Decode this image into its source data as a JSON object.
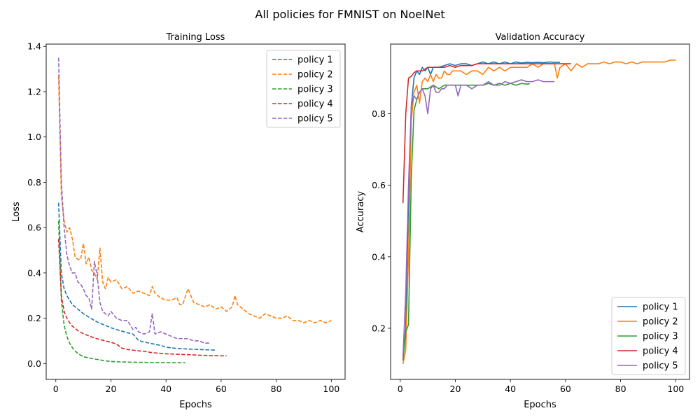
{
  "figure": {
    "title": "All policies for FMNIST on NoelNet"
  },
  "chart_data": [
    {
      "type": "line",
      "line_style": "dashed",
      "title": "Training Loss",
      "xlabel": "Epochs",
      "ylabel": "Loss",
      "xlim": [
        -3.5,
        105
      ],
      "ylim": [
        -0.07,
        1.41
      ],
      "xticks": [
        0,
        20,
        40,
        60,
        80,
        100
      ],
      "yticks": [
        0.0,
        0.2,
        0.4,
        0.6,
        0.8,
        1.0,
        1.2,
        1.4
      ],
      "ytick_labels": [
        "0.0",
        "0.2",
        "0.4",
        "0.6",
        "0.8",
        "1.0",
        "1.2",
        "1.4"
      ],
      "legend_position": "top-right",
      "series": [
        {
          "name": "policy 1",
          "color": "#1f77b4",
          "x": [
            1,
            2,
            3,
            4,
            5,
            6,
            7,
            8,
            9,
            10,
            12,
            14,
            16,
            18,
            20,
            22,
            24,
            26,
            28,
            30,
            32,
            34,
            36,
            38,
            40,
            42,
            44,
            46,
            48,
            50,
            52,
            54,
            56,
            58
          ],
          "y": [
            0.71,
            0.4,
            0.33,
            0.3,
            0.28,
            0.26,
            0.25,
            0.24,
            0.23,
            0.22,
            0.205,
            0.19,
            0.178,
            0.168,
            0.158,
            0.15,
            0.143,
            0.136,
            0.13,
            0.102,
            0.095,
            0.09,
            0.085,
            0.08,
            0.072,
            0.069,
            0.067,
            0.066,
            0.064,
            0.063,
            0.062,
            0.061,
            0.06,
            0.059
          ]
        },
        {
          "name": "policy 2",
          "color": "#ff7f0e",
          "x": [
            1,
            2,
            3,
            4,
            5,
            6,
            7,
            8,
            9,
            10,
            11,
            12,
            13,
            14,
            15,
            16,
            17,
            18,
            19,
            20,
            22,
            24,
            26,
            28,
            30,
            32,
            34,
            35,
            36,
            38,
            40,
            42,
            44,
            45,
            46,
            48,
            50,
            52,
            54,
            56,
            58,
            60,
            62,
            64,
            65,
            66,
            68,
            70,
            72,
            74,
            76,
            78,
            80,
            82,
            84,
            86,
            88,
            90,
            92,
            94,
            96,
            98,
            100
          ],
          "y": [
            1.27,
            0.74,
            0.63,
            0.58,
            0.6,
            0.55,
            0.47,
            0.46,
            0.46,
            0.53,
            0.44,
            0.47,
            0.41,
            0.4,
            0.37,
            0.51,
            0.36,
            0.33,
            0.38,
            0.36,
            0.37,
            0.33,
            0.34,
            0.31,
            0.32,
            0.31,
            0.3,
            0.34,
            0.31,
            0.29,
            0.28,
            0.28,
            0.29,
            0.26,
            0.26,
            0.33,
            0.27,
            0.26,
            0.25,
            0.26,
            0.24,
            0.25,
            0.23,
            0.25,
            0.3,
            0.26,
            0.24,
            0.22,
            0.21,
            0.2,
            0.22,
            0.21,
            0.2,
            0.2,
            0.21,
            0.19,
            0.19,
            0.18,
            0.19,
            0.18,
            0.19,
            0.18,
            0.19
          ]
        },
        {
          "name": "policy 3",
          "color": "#2ca02c",
          "x": [
            1,
            2,
            3,
            4,
            5,
            6,
            7,
            8,
            9,
            10,
            12,
            14,
            16,
            18,
            20,
            22,
            24,
            26,
            28,
            30,
            32,
            34,
            36,
            38,
            40,
            42,
            44,
            46,
            47
          ],
          "y": [
            0.63,
            0.28,
            0.17,
            0.12,
            0.09,
            0.07,
            0.055,
            0.045,
            0.037,
            0.03,
            0.025,
            0.02,
            0.016,
            0.012,
            0.009,
            0.008,
            0.007,
            0.0065,
            0.006,
            0.0055,
            0.005,
            0.0048,
            0.0045,
            0.0043,
            0.004,
            0.0038,
            0.0036,
            0.0035,
            0.0034
          ]
        },
        {
          "name": "policy 4",
          "color": "#d62728",
          "x": [
            1,
            2,
            3,
            4,
            5,
            6,
            7,
            8,
            9,
            10,
            12,
            14,
            16,
            18,
            20,
            22,
            24,
            26,
            28,
            30,
            32,
            34,
            36,
            38,
            40,
            42,
            44,
            46,
            48,
            50,
            52,
            54,
            56,
            58,
            60,
            62
          ],
          "y": [
            0.55,
            0.3,
            0.23,
            0.2,
            0.18,
            0.165,
            0.155,
            0.145,
            0.138,
            0.132,
            0.122,
            0.113,
            0.106,
            0.1,
            0.094,
            0.086,
            0.068,
            0.062,
            0.059,
            0.056,
            0.054,
            0.05,
            0.047,
            0.045,
            0.043,
            0.042,
            0.041,
            0.04,
            0.039,
            0.038,
            0.037,
            0.036,
            0.035,
            0.035,
            0.034,
            0.034
          ]
        },
        {
          "name": "policy 5",
          "color": "#9467bd",
          "x": [
            1,
            2,
            3,
            4,
            5,
            6,
            7,
            8,
            9,
            10,
            11,
            12,
            13,
            14,
            15,
            16,
            17,
            18,
            19,
            20,
            22,
            24,
            26,
            28,
            29,
            30,
            32,
            34,
            35,
            36,
            38,
            40,
            42,
            44,
            46,
            48,
            50,
            52,
            54,
            56
          ],
          "y": [
            1.35,
            0.8,
            0.6,
            0.48,
            0.43,
            0.4,
            0.4,
            0.36,
            0.35,
            0.33,
            0.3,
            0.29,
            0.24,
            0.45,
            0.39,
            0.27,
            0.23,
            0.22,
            0.21,
            0.23,
            0.2,
            0.19,
            0.19,
            0.15,
            0.16,
            0.14,
            0.13,
            0.14,
            0.22,
            0.13,
            0.14,
            0.13,
            0.12,
            0.11,
            0.11,
            0.11,
            0.1,
            0.1,
            0.09,
            0.09
          ]
        }
      ]
    },
    {
      "type": "line",
      "line_style": "solid",
      "title": "Validation Accuracy",
      "xlabel": "Epochs",
      "ylabel": "Accuracy",
      "xlim": [
        -3.5,
        105
      ],
      "ylim": [
        0.057,
        0.995
      ],
      "xticks": [
        0,
        20,
        40,
        60,
        80,
        100
      ],
      "yticks": [
        0.2,
        0.4,
        0.6,
        0.8
      ],
      "ytick_labels": [
        "0.2",
        "0.4",
        "0.6",
        "0.8"
      ],
      "legend_position": "bottom-right",
      "series": [
        {
          "name": "policy 1",
          "color": "#1f77b4",
          "x": [
            1,
            2,
            3,
            4,
            5,
            6,
            7,
            8,
            9,
            10,
            11,
            12,
            14,
            16,
            18,
            20,
            22,
            24,
            26,
            28,
            30,
            32,
            34,
            36,
            38,
            40,
            42,
            44,
            46,
            48,
            50,
            52,
            54,
            56,
            58
          ],
          "y": [
            0.11,
            0.2,
            0.55,
            0.82,
            0.9,
            0.92,
            0.91,
            0.93,
            0.92,
            0.93,
            0.91,
            0.93,
            0.93,
            0.935,
            0.94,
            0.935,
            0.94,
            0.94,
            0.935,
            0.94,
            0.945,
            0.94,
            0.945,
            0.94,
            0.945,
            0.94,
            0.945,
            0.942,
            0.944,
            0.943,
            0.944,
            0.943,
            0.945,
            0.944,
            0.944
          ]
        },
        {
          "name": "policy 2",
          "color": "#ff7f0e",
          "x": [
            1,
            2,
            3,
            4,
            5,
            6,
            7,
            8,
            9,
            10,
            11,
            12,
            13,
            14,
            15,
            16,
            17,
            18,
            19,
            20,
            22,
            24,
            26,
            28,
            30,
            32,
            34,
            36,
            38,
            40,
            42,
            44,
            46,
            48,
            50,
            52,
            54,
            56,
            57,
            58,
            60,
            62,
            64,
            66,
            68,
            70,
            72,
            74,
            76,
            78,
            80,
            82,
            84,
            86,
            88,
            90,
            92,
            94,
            96,
            98,
            100
          ],
          "y": [
            0.1,
            0.14,
            0.4,
            0.78,
            0.86,
            0.88,
            0.83,
            0.89,
            0.9,
            0.89,
            0.91,
            0.89,
            0.91,
            0.9,
            0.9,
            0.92,
            0.91,
            0.91,
            0.92,
            0.92,
            0.92,
            0.91,
            0.92,
            0.92,
            0.91,
            0.93,
            0.92,
            0.93,
            0.92,
            0.93,
            0.93,
            0.93,
            0.93,
            0.94,
            0.93,
            0.94,
            0.94,
            0.94,
            0.9,
            0.93,
            0.94,
            0.92,
            0.94,
            0.93,
            0.94,
            0.94,
            0.94,
            0.945,
            0.94,
            0.945,
            0.945,
            0.94,
            0.945,
            0.94,
            0.945,
            0.945,
            0.945,
            0.945,
            0.945,
            0.95,
            0.95
          ]
        },
        {
          "name": "policy 3",
          "color": "#2ca02c",
          "x": [
            1,
            2,
            3,
            4,
            5,
            6,
            7,
            8,
            9,
            10,
            12,
            14,
            16,
            18,
            20,
            22,
            24,
            26,
            28,
            30,
            32,
            34,
            36,
            38,
            40,
            42,
            44,
            46,
            47
          ],
          "y": [
            0.11,
            0.19,
            0.21,
            0.62,
            0.81,
            0.84,
            0.86,
            0.87,
            0.87,
            0.87,
            0.88,
            0.87,
            0.88,
            0.88,
            0.88,
            0.88,
            0.88,
            0.88,
            0.88,
            0.88,
            0.885,
            0.88,
            0.885,
            0.88,
            0.885,
            0.88,
            0.885,
            0.883,
            0.884
          ]
        },
        {
          "name": "policy 4",
          "color": "#d62728",
          "x": [
            1,
            2,
            3,
            4,
            5,
            6,
            7,
            8,
            9,
            10,
            12,
            14,
            16,
            18,
            20,
            22,
            24,
            26,
            28,
            30,
            32,
            34,
            36,
            38,
            40,
            42,
            44,
            46,
            48,
            50,
            52,
            54,
            56,
            58,
            60,
            62
          ],
          "y": [
            0.55,
            0.8,
            0.9,
            0.905,
            0.915,
            0.92,
            0.92,
            0.92,
            0.925,
            0.93,
            0.93,
            0.93,
            0.93,
            0.935,
            0.93,
            0.935,
            0.935,
            0.935,
            0.94,
            0.94,
            0.94,
            0.94,
            0.94,
            0.94,
            0.94,
            0.94,
            0.94,
            0.94,
            0.94,
            0.94,
            0.94,
            0.94,
            0.94,
            0.94,
            0.94,
            0.94
          ]
        },
        {
          "name": "policy 5",
          "color": "#9467bd",
          "x": [
            1,
            2,
            3,
            4,
            5,
            6,
            7,
            8,
            9,
            10,
            11,
            12,
            13,
            14,
            15,
            16,
            17,
            18,
            19,
            20,
            21,
            22,
            24,
            26,
            28,
            30,
            32,
            34,
            36,
            38,
            40,
            42,
            44,
            46,
            48,
            50,
            52,
            54,
            56
          ],
          "y": [
            0.12,
            0.3,
            0.6,
            0.82,
            0.85,
            0.84,
            0.86,
            0.87,
            0.85,
            0.8,
            0.87,
            0.88,
            0.86,
            0.86,
            0.87,
            0.87,
            0.88,
            0.88,
            0.88,
            0.88,
            0.85,
            0.88,
            0.88,
            0.87,
            0.88,
            0.88,
            0.89,
            0.88,
            0.88,
            0.89,
            0.885,
            0.89,
            0.895,
            0.89,
            0.89,
            0.895,
            0.89,
            0.89,
            0.89
          ]
        }
      ]
    }
  ]
}
